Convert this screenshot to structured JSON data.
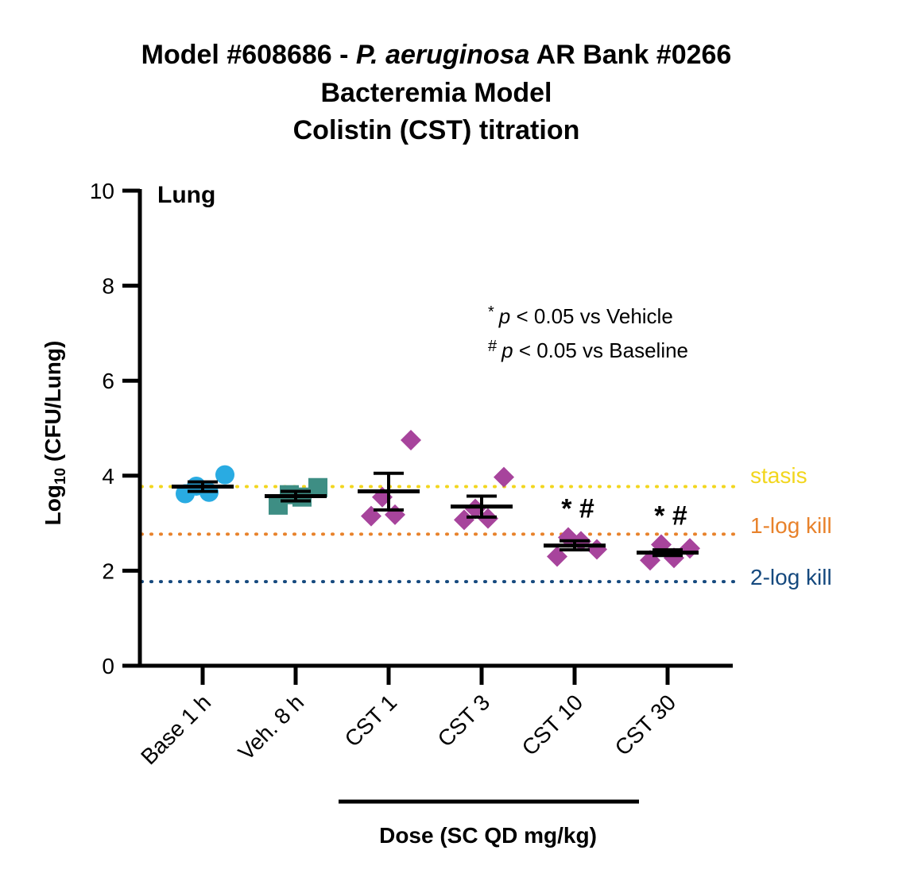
{
  "chart_data": {
    "type": "scatter",
    "title_lines": [
      {
        "parts": [
          {
            "text": "Model #608686 - ",
            "italic": false
          },
          {
            "text": "P. aeruginosa",
            "italic": true
          },
          {
            "text": " AR Bank #0266",
            "italic": false
          }
        ]
      },
      {
        "parts": [
          {
            "text": "Bacteremia Model",
            "italic": false
          }
        ]
      },
      {
        "parts": [
          {
            "text": "Colistin (CST) titration",
            "italic": false
          }
        ]
      }
    ],
    "panel_label": "Lung",
    "ylabel": {
      "main": "Log",
      "sub": "10",
      "rest": " (CFU/Lung)"
    },
    "xlabel": "Dose (SC QD mg/kg)",
    "ylim": [
      0,
      10
    ],
    "yticks": [
      0,
      2,
      4,
      6,
      8,
      10
    ],
    "categories": [
      "Base 1 h",
      "Veh. 8 h",
      "CST 1",
      "CST 3",
      "CST 10",
      "CST 30"
    ],
    "dose_bracket_categories": [
      "CST 1",
      "CST 30"
    ],
    "groups": [
      {
        "name": "Base 1 h",
        "marker": "circle",
        "color": "#29ABE2",
        "points": [
          3.62,
          3.78,
          3.65,
          4.02
        ],
        "mean": 3.77,
        "sem_low": 3.67,
        "sem_high": 3.87,
        "annotation": ""
      },
      {
        "name": "Veh. 8 h",
        "marker": "square",
        "color": "#3E8E84",
        "points": [
          3.38,
          3.6,
          3.55,
          3.75
        ],
        "mean": 3.57,
        "sem_low": 3.47,
        "sem_high": 3.67,
        "annotation": ""
      },
      {
        "name": "CST 1",
        "marker": "diamond",
        "color": "#A7449C",
        "points": [
          3.15,
          3.55,
          3.18,
          4.75
        ],
        "mean": 3.67,
        "sem_low": 3.28,
        "sem_high": 4.05,
        "annotation": ""
      },
      {
        "name": "CST 3",
        "marker": "diamond",
        "color": "#A7449C",
        "points": [
          3.07,
          3.3,
          3.1,
          3.97
        ],
        "mean": 3.35,
        "sem_low": 3.13,
        "sem_high": 3.57,
        "annotation": ""
      },
      {
        "name": "CST 10",
        "marker": "diamond",
        "color": "#A7449C",
        "points": [
          2.3,
          2.7,
          2.62,
          2.45
        ],
        "mean": 2.53,
        "sem_low": 2.44,
        "sem_high": 2.63,
        "annotation": "* #"
      },
      {
        "name": "CST 30",
        "marker": "diamond",
        "color": "#A7449C",
        "points": [
          2.22,
          2.55,
          2.27,
          2.47
        ],
        "mean": 2.38,
        "sem_low": 2.32,
        "sem_high": 2.44,
        "annotation": "* #"
      }
    ],
    "reference_lines": [
      {
        "label": "stasis",
        "y": 3.77,
        "color": "#F2D61E"
      },
      {
        "label": "1-log kill",
        "y": 2.77,
        "color": "#E8822B"
      },
      {
        "label": "2-log kill",
        "y": 1.77,
        "color": "#15497E"
      }
    ],
    "legend_notes": [
      {
        "symbol": "*",
        "p": "p",
        "text": " < 0.05 vs Vehicle"
      },
      {
        "symbol": "#",
        "p": "p",
        "text": " < 0.05 vs Baseline"
      }
    ],
    "grid": false
  }
}
